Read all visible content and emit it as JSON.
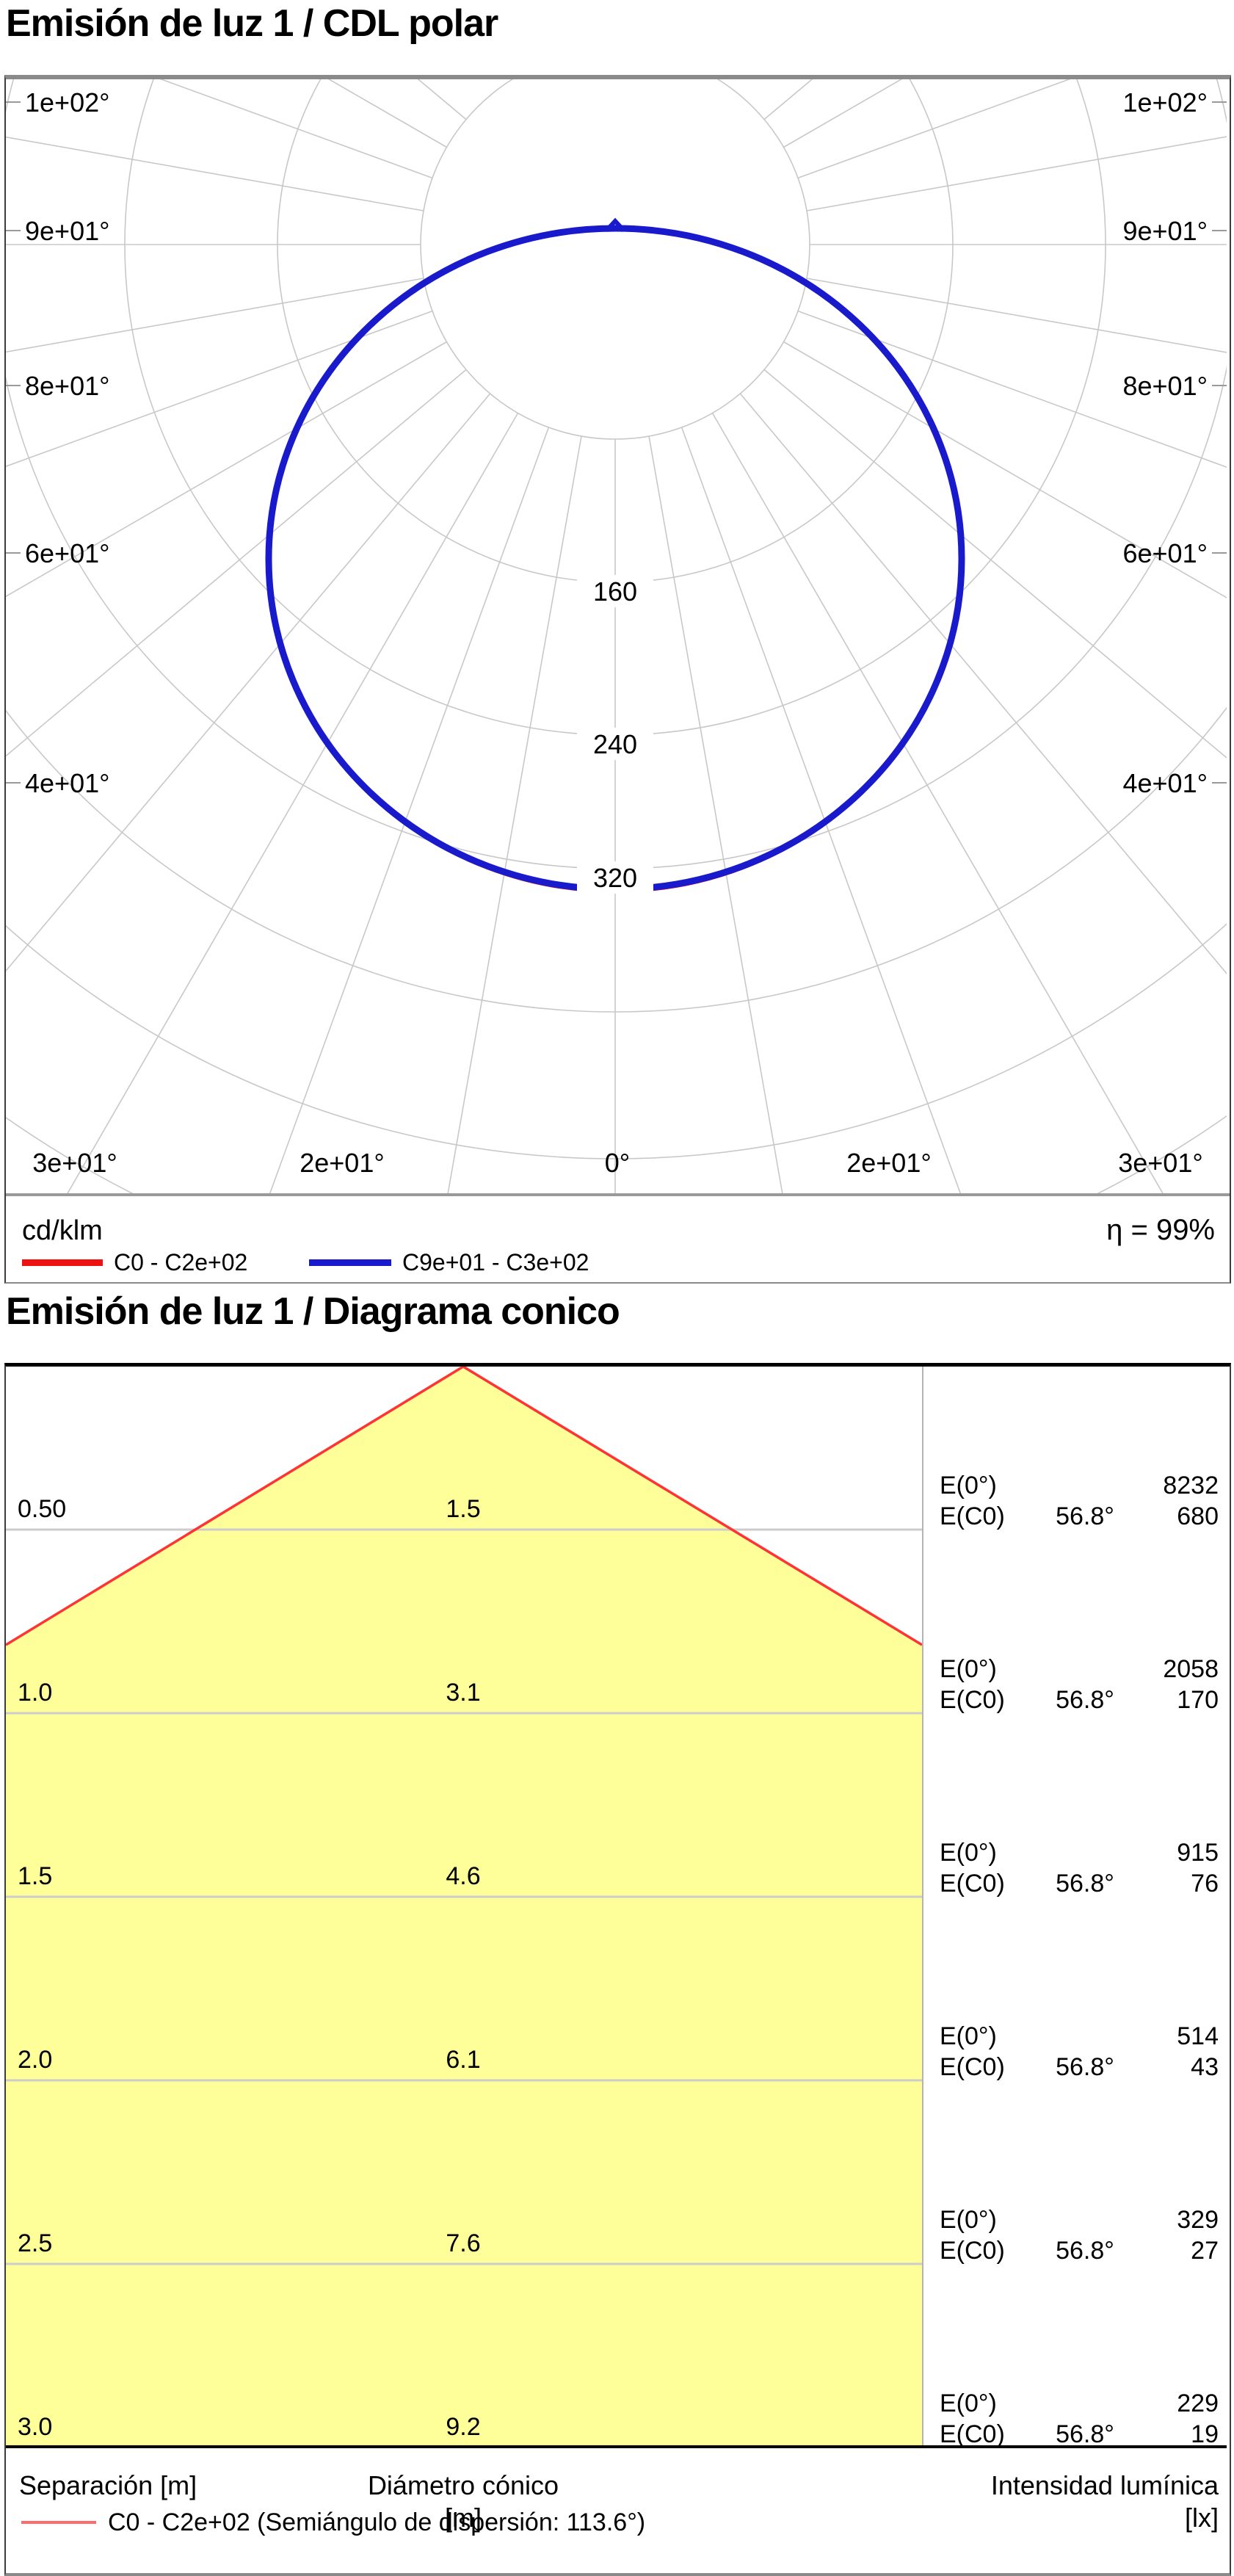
{
  "polar": {
    "title": "Emisión de luz 1 / CDL polar",
    "unit_label": "cd/klm",
    "efficiency": "η = 99%",
    "ring_labels": [
      "160",
      "240",
      "320"
    ],
    "angle_labels_left": [
      "1e+02°",
      "9e+01°",
      "8e+01°",
      "6e+01°",
      "4e+01°"
    ],
    "angle_labels_right": [
      "1e+02°",
      "9e+01°",
      "8e+01°",
      "6e+01°",
      "4e+01°"
    ],
    "angle_labels_bottom": [
      "3e+01°",
      "2e+01°",
      "0°",
      "2e+01°",
      "3e+01°"
    ],
    "legend": [
      {
        "label": "C0 - C2e+02",
        "color": "#ee1111"
      },
      {
        "label": "C9e+01 - C3e+02",
        "color": "#1a1acd"
      }
    ]
  },
  "cone": {
    "title": "Emisión de luz 1 / Diagrama conico",
    "e0_label": "E(0°)",
    "ec0_label": "E(C0)",
    "rows": [
      {
        "sep": "0.50",
        "diam": "1.5",
        "e0": "8232",
        "angle": "56.8°",
        "ec0": "680"
      },
      {
        "sep": "1.0",
        "diam": "3.1",
        "e0": "2058",
        "angle": "56.8°",
        "ec0": "170"
      },
      {
        "sep": "1.5",
        "diam": "4.6",
        "e0": "915",
        "angle": "56.8°",
        "ec0": "76"
      },
      {
        "sep": "2.0",
        "diam": "6.1",
        "e0": "514",
        "angle": "56.8°",
        "ec0": "43"
      },
      {
        "sep": "2.5",
        "diam": "7.6",
        "e0": "329",
        "angle": "56.8°",
        "ec0": "27"
      },
      {
        "sep": "3.0",
        "diam": "9.2",
        "e0": "229",
        "angle": "56.8°",
        "ec0": "19"
      }
    ],
    "footer": {
      "separation": "Separación [m]",
      "diameter": "Diámetro cónico [m]",
      "intensity": "Intensidad lumínica [lx]"
    },
    "legend_label": "C0 - C2e+02 (Semiángulo de dispersión: 113.6°)"
  },
  "chart_data": [
    {
      "type": "line",
      "subtype": "polar-intensity-distribution",
      "title": "Emisión de luz 1 / CDL polar",
      "unit": "cd/klm",
      "efficiency_pct": 99,
      "radial_ticks": [
        160,
        240,
        320
      ],
      "radial_grid_step": 80,
      "radial_grid_max": 560,
      "angle_tick_labels_deg": [
        0,
        20,
        30,
        40,
        60,
        80,
        90,
        100
      ],
      "angle_deg": [
        0,
        15,
        30,
        45,
        60,
        75,
        90,
        105,
        120,
        135,
        150,
        165,
        180
      ],
      "series": [
        {
          "name": "C0 - C2e+02",
          "color": "#ee1111",
          "values": [
            334,
            325,
            300,
            262,
            204,
            143,
            91,
            57,
            39,
            30,
            26,
            24,
            23
          ]
        },
        {
          "name": "C9e+01 - C3e+02",
          "color": "#1a1acd",
          "values": [
            334,
            325,
            300,
            262,
            204,
            143,
            91,
            57,
            39,
            30,
            26,
            24,
            23
          ]
        }
      ],
      "grid": true,
      "legend_position": "bottom",
      "symmetric_about_vertical_axis": true
    },
    {
      "type": "table",
      "subtype": "cone-diagram",
      "title": "Emisión de luz 1 / Diagrama conico",
      "columns": [
        "Separación [m]",
        "Diámetro cónico [m]",
        "E(0°) [lx]",
        "E(C0) [lx]"
      ],
      "separation_m": [
        0.5,
        1.0,
        1.5,
        2.0,
        2.5,
        3.0
      ],
      "cone_diameter_m": [
        1.5,
        3.1,
        4.6,
        6.1,
        7.6,
        9.2
      ],
      "E0_lx": [
        8232,
        2058,
        915,
        514,
        329,
        229
      ],
      "EC0_lx": [
        680,
        170,
        76,
        43,
        27,
        19
      ],
      "beam_half_angle_deg": 56.8,
      "dispersion_semiangle_deg": 113.6,
      "beam_color": "#ffff99",
      "beam_edge_color": "#ff3333"
    }
  ]
}
